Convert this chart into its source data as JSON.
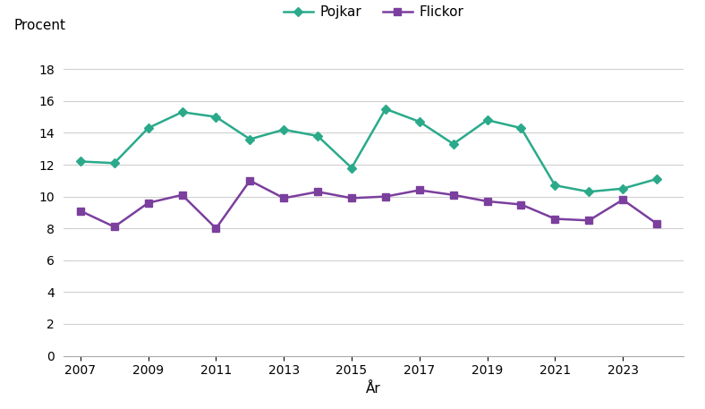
{
  "years": [
    2007,
    2008,
    2009,
    2010,
    2011,
    2012,
    2013,
    2014,
    2015,
    2016,
    2017,
    2018,
    2019,
    2020,
    2021,
    2022,
    2023,
    2024
  ],
  "pojkar": [
    12.2,
    12.1,
    14.3,
    15.3,
    15.0,
    13.6,
    14.2,
    13.8,
    11.8,
    15.5,
    14.7,
    13.3,
    14.8,
    14.3,
    10.7,
    10.3,
    10.5,
    11.1
  ],
  "flickor": [
    9.1,
    8.1,
    9.6,
    10.1,
    8.0,
    11.0,
    9.9,
    10.3,
    9.9,
    10.0,
    10.4,
    10.1,
    9.7,
    9.5,
    8.6,
    8.5,
    9.8,
    8.3
  ],
  "pojkar_color": "#2aaa8a",
  "flickor_color": "#7b3f9e",
  "pojkar_label": "Pojkar",
  "flickor_label": "Flickor",
  "xlabel": "År",
  "ylabel": "Procent",
  "ylim": [
    0,
    19
  ],
  "yticks": [
    0,
    2,
    4,
    6,
    8,
    10,
    12,
    14,
    16,
    18
  ],
  "xticks": [
    2007,
    2009,
    2011,
    2013,
    2015,
    2017,
    2019,
    2021,
    2023
  ],
  "xlim": [
    2006.5,
    2024.8
  ],
  "background_color": "#ffffff",
  "grid_color": "#d0d0d0"
}
